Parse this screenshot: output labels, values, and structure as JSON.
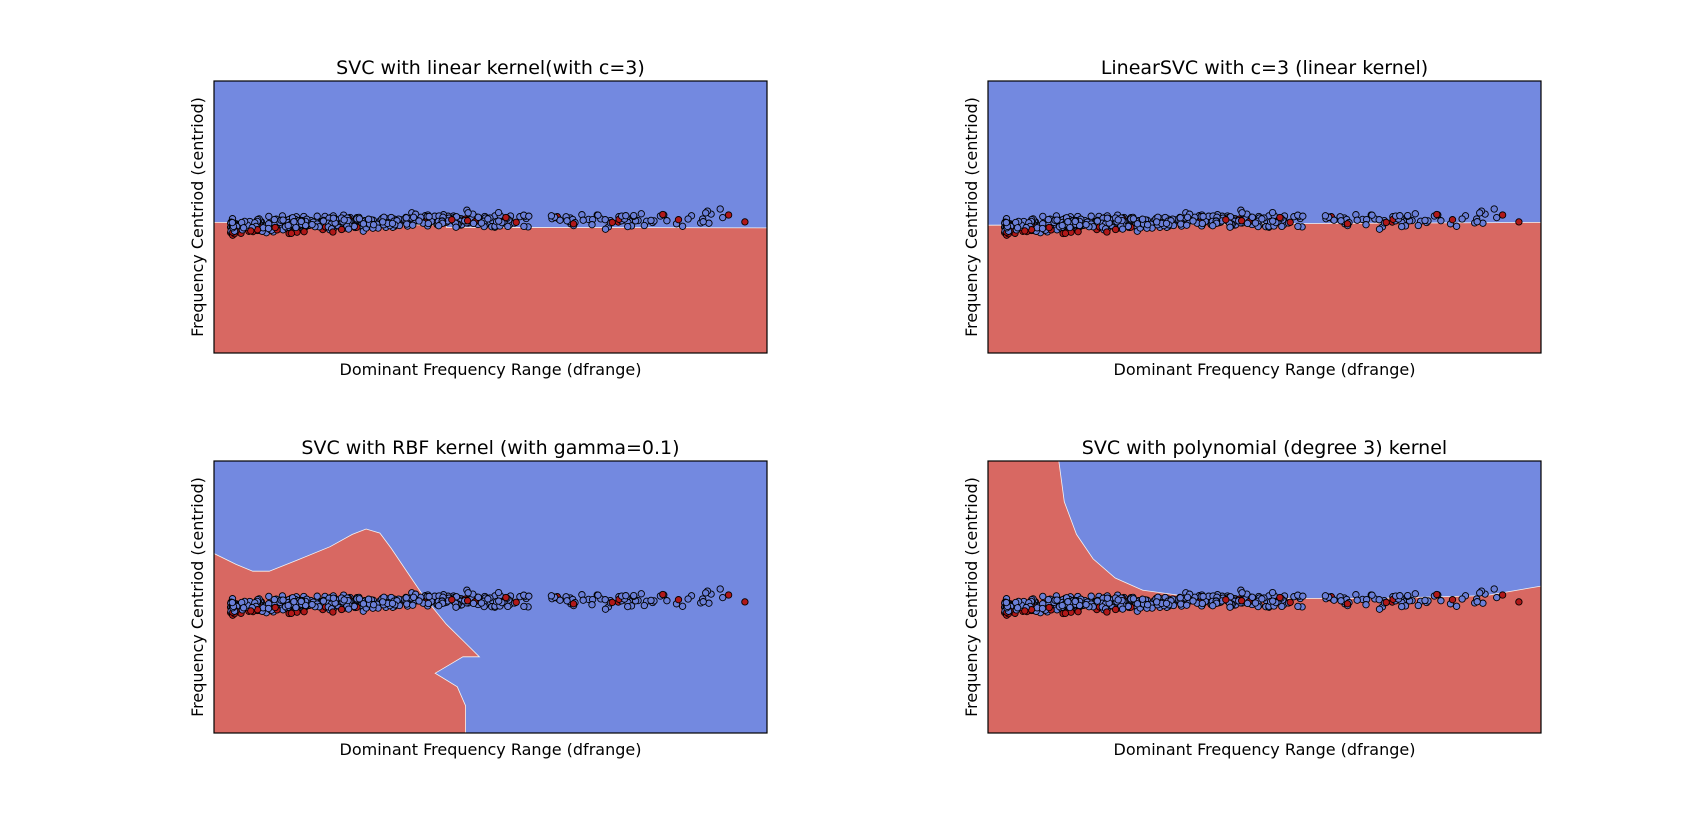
{
  "colors": {
    "class_0_region": "#7389e0",
    "class_1_region": "#d86862",
    "class_0_point": "#6a7fd8",
    "class_1_point": "#b01818",
    "point_edge": "#000000"
  },
  "chart_data": [
    {
      "type": "scatter",
      "title": "SVC with linear kernel(with c=3)",
      "xlabel": "Dominant Frequency Range (dfrange)",
      "ylabel": "Frequency Centriod (centriod)",
      "xticks": "hidden",
      "yticks": "hidden",
      "grid": false,
      "boundary_kind": "linear",
      "regions": {
        "above_boundary": "class 0 (blue)",
        "below_boundary": "class 1 (red)"
      },
      "decision_boundary": [
        [
          0.0,
          -0.2
        ],
        [
          4.2,
          -0.3
        ],
        [
          4.2,
          -0.38
        ],
        [
          10.0,
          -0.4
        ]
      ]
    },
    {
      "type": "scatter",
      "title": "LinearSVC with c=3 (linear kernel)",
      "xlabel": "Dominant Frequency Range (dfrange)",
      "ylabel": "Frequency Centriod (centriod)",
      "xticks": "hidden",
      "yticks": "hidden",
      "grid": false,
      "boundary_kind": "linear",
      "regions": {
        "above_boundary": "class 0 (blue)",
        "below_boundary": "class 1 (red)"
      },
      "decision_boundary": [
        [
          0.0,
          -0.3
        ],
        [
          10.0,
          -0.2
        ]
      ]
    },
    {
      "type": "scatter",
      "title": "SVC with RBF kernel (with gamma=0.1)",
      "xlabel": "Dominant Frequency Range (dfrange)",
      "ylabel": "Frequency Centriod (centriod)",
      "xticks": "hidden",
      "yticks": "hidden",
      "grid": false,
      "boundary_kind": "rbf",
      "regions": {
        "left_of_boundary": "class 1 (red)",
        "right_of_boundary": "class 0 (blue)"
      },
      "decision_boundary": [
        [
          0.0,
          1.6
        ],
        [
          0.4,
          1.2
        ],
        [
          0.7,
          0.95
        ],
        [
          1.0,
          0.95
        ],
        [
          1.5,
          1.35
        ],
        [
          2.1,
          1.85
        ],
        [
          2.5,
          2.3
        ],
        [
          2.75,
          2.5
        ],
        [
          3.0,
          2.35
        ],
        [
          3.2,
          1.8
        ],
        [
          3.5,
          0.9
        ],
        [
          3.8,
          0.0
        ],
        [
          4.0,
          -0.5
        ],
        [
          4.2,
          -1.0
        ],
        [
          4.5,
          -1.6
        ],
        [
          4.8,
          -2.2
        ],
        [
          4.5,
          -2.2
        ],
        [
          4.0,
          -2.8
        ],
        [
          4.4,
          -3.3
        ],
        [
          4.55,
          -4.0
        ],
        [
          4.55,
          -5.0
        ]
      ]
    },
    {
      "type": "scatter",
      "title": "SVC with polynomial (degree 3) kernel",
      "xlabel": "Dominant Frequency Range (dfrange)",
      "ylabel": "Frequency Centriod (centriod)",
      "xticks": "hidden",
      "yticks": "hidden",
      "grid": false,
      "boundary_kind": "polynomial",
      "regions": {
        "left_and_below_boundary": "class 1 (red)",
        "right_and_above_boundary": "class 0 (blue)"
      },
      "decision_boundary": [
        [
          1.28,
          5.0
        ],
        [
          1.38,
          3.5
        ],
        [
          1.6,
          2.3
        ],
        [
          1.9,
          1.4
        ],
        [
          2.3,
          0.7
        ],
        [
          2.8,
          0.25
        ],
        [
          3.5,
          0.05
        ],
        [
          5.0,
          -0.05
        ],
        [
          7.0,
          -0.05
        ],
        [
          9.0,
          0.05
        ],
        [
          10.0,
          0.4
        ]
      ]
    }
  ]
}
